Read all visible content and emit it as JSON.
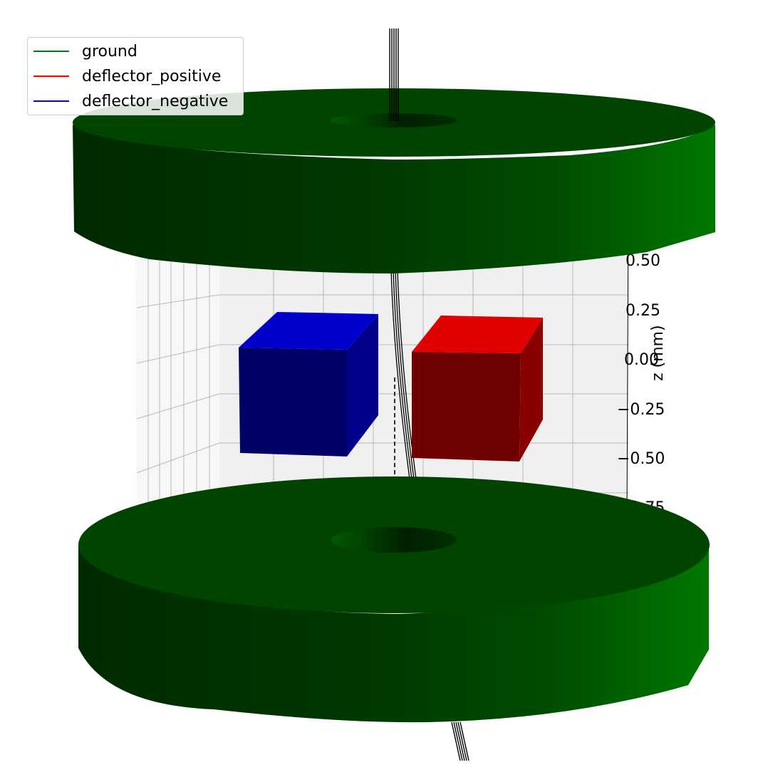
{
  "legend": {
    "items": [
      {
        "label": "ground",
        "color": "#008000"
      },
      {
        "label": "deflector_positive",
        "color": "#ff0000"
      },
      {
        "label": "deflector_negative",
        "color": "#0000ff"
      }
    ]
  },
  "axis": {
    "z_label": "z (mm)",
    "z_ticks": [
      "0.50",
      "0.25",
      "0.00",
      "−0.25",
      "−0.50",
      "−0.75"
    ]
  },
  "colors": {
    "ground_dark": "#003300",
    "ground_mid": "#004400",
    "ground_light": "#007000",
    "positive_top": "#e00000",
    "positive_front": "#700000",
    "negative_top": "#0000cc",
    "negative_front": "#000066",
    "trajectory": "#000000",
    "pane": "#f2f2f2",
    "grid": "#b0b0b0"
  }
}
